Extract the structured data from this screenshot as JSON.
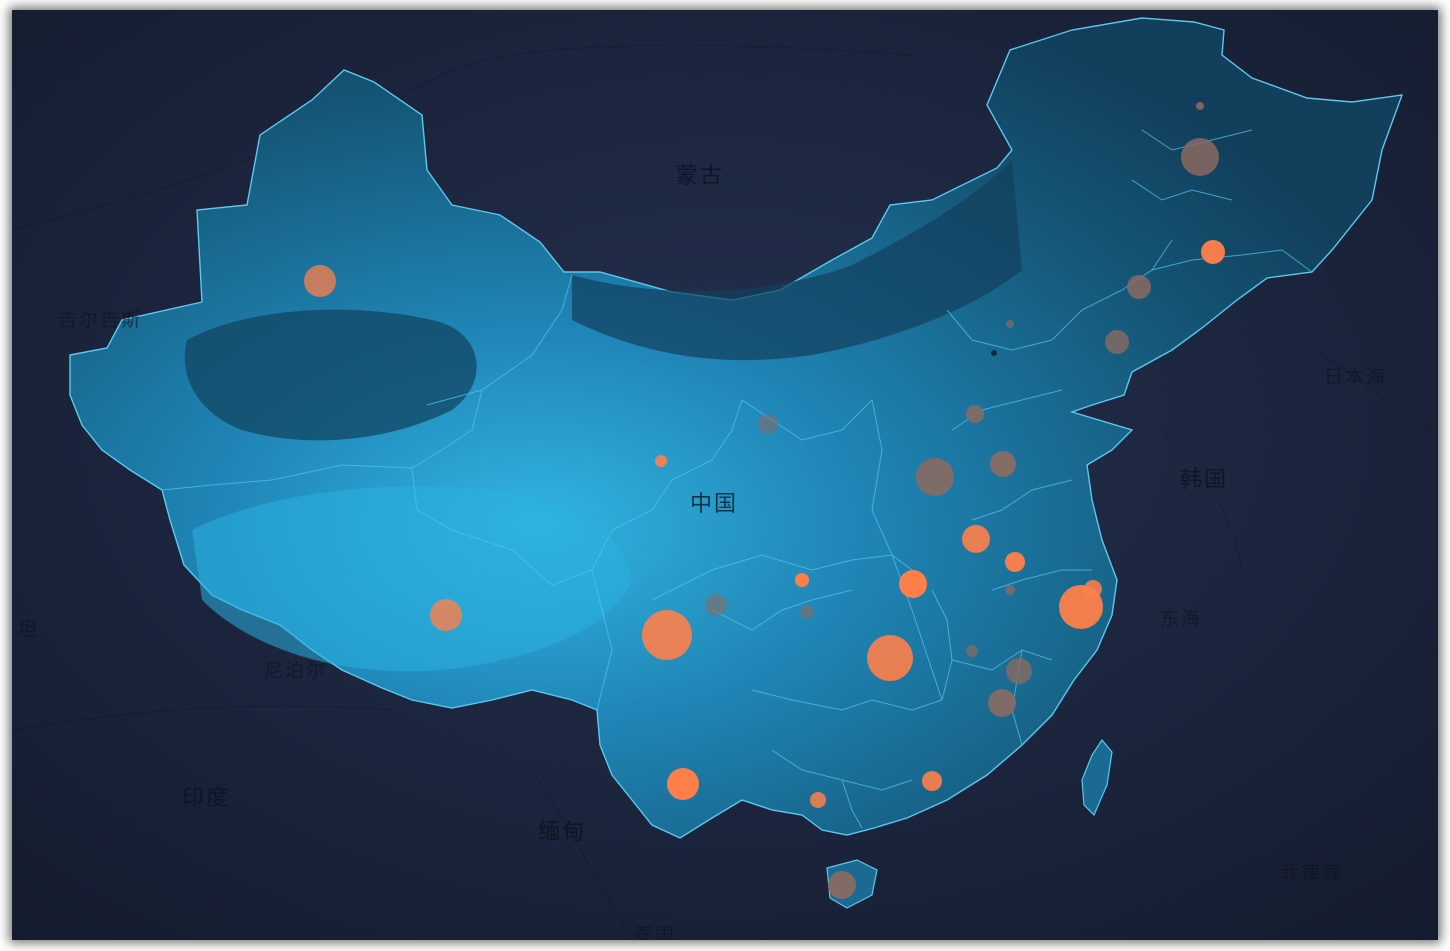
{
  "map": {
    "country_labels": {
      "mongolia": "蒙古",
      "china": "中国",
      "korea": "韩国",
      "sea_of_japan": "日本海",
      "east_china_sea": "东海",
      "kyrgyzstan": "吉尔吉斯",
      "nepal": "尼泊尔",
      "india": "印度",
      "myanmar": "缅甸",
      "thailand": "泰国",
      "philippines": "菲律宾",
      "tan": "坦"
    },
    "colors": {
      "background": "#1a2238",
      "land": "#1b5f86",
      "land_light": "#2aa6d2",
      "border": "#4fc3e8",
      "bubble": "#ff7f4a",
      "bubble_muted": "#8a6a62"
    }
  }
}
